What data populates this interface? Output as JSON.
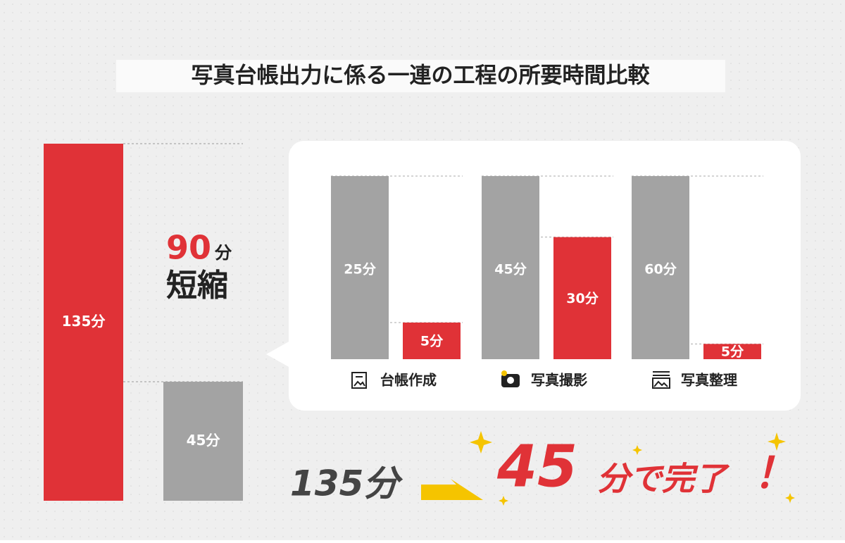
{
  "title": "写真台帳出力に係る一連の工程の所要時間比較",
  "chart_data": [
    {
      "type": "bar",
      "values": [
        135,
        45
      ],
      "value_labels": [
        "135分",
        "45分"
      ],
      "colors": [
        "#e03237",
        "#a3a3a3"
      ],
      "ylim": [
        0,
        135
      ]
    },
    {
      "type": "grouped-bar",
      "categories": [
        "台帳作成",
        "写真撮影",
        "写真整理"
      ],
      "series": [
        {
          "color": "#a3a3a3",
          "values": [
            25,
            45,
            60
          ],
          "value_labels": [
            "25分",
            "45分",
            "60分"
          ]
        },
        {
          "color": "#e03237",
          "values": [
            5,
            30,
            5
          ],
          "value_labels": [
            "5分",
            "30分",
            "5分"
          ]
        }
      ]
    }
  ],
  "reduction": {
    "value": 90,
    "unit": "分",
    "label": "短縮"
  },
  "headline": {
    "before": "135分",
    "after": "45",
    "after_unit": "分で完了",
    "exclaim": "！"
  }
}
